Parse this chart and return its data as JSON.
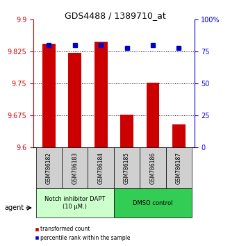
{
  "title": "GDS4488 / 1389710_at",
  "samples": [
    "GSM786182",
    "GSM786183",
    "GSM786184",
    "GSM786185",
    "GSM786186",
    "GSM786187"
  ],
  "red_values": [
    9.843,
    9.822,
    9.848,
    9.678,
    9.752,
    9.655
  ],
  "blue_values": [
    80,
    80,
    80,
    78,
    80,
    78
  ],
  "ylim_left": [
    9.6,
    9.9
  ],
  "ylim_right": [
    0,
    100
  ],
  "yticks_left": [
    9.6,
    9.675,
    9.75,
    9.825,
    9.9
  ],
  "yticks_right": [
    0,
    25,
    50,
    75,
    100
  ],
  "ytick_labels_right": [
    "0",
    "25",
    "50",
    "75",
    "100%"
  ],
  "group1_label": "Notch inhibitor DAPT\n(10 μM.)",
  "group2_label": "DMSO control",
  "agent_label": "agent",
  "legend_red": "transformed count",
  "legend_blue": "percentile rank within the sample",
  "bar_color": "#cc0000",
  "blue_color": "#0000cc",
  "group1_bg": "#ccffcc",
  "group2_bg": "#33cc55",
  "tick_bg": "#d0d0d0",
  "bar_width": 0.5
}
